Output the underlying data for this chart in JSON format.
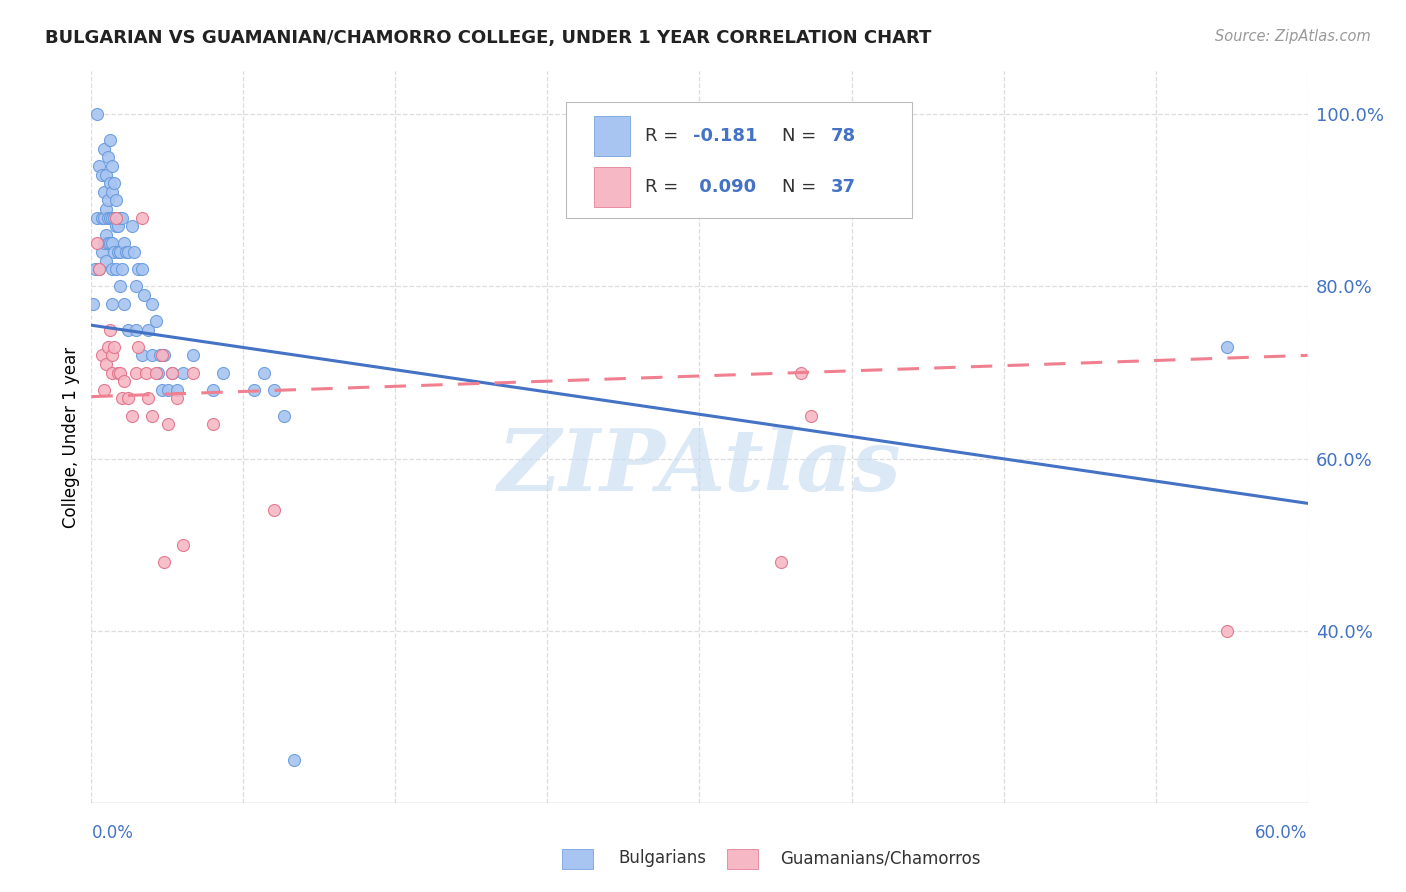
{
  "title": "BULGARIAN VS GUAMANIAN/CHAMORRO COLLEGE, UNDER 1 YEAR CORRELATION CHART",
  "source": "Source: ZipAtlas.com",
  "ylabel": "College, Under 1 year",
  "right_yticks": [
    "100.0%",
    "80.0%",
    "60.0%",
    "40.0%"
  ],
  "right_ytick_vals": [
    1.0,
    0.8,
    0.6,
    0.4
  ],
  "legend_R1": "-0.181",
  "legend_N1": "78",
  "legend_R2": "0.090",
  "legend_N2": "37",
  "blue_color": "#A8C4F0",
  "blue_edge_color": "#6699DD",
  "pink_color": "#F5B8C4",
  "pink_edge_color": "#E07088",
  "blue_line_color": "#4472C4",
  "pink_line_color": "#F08090",
  "text_blue": "#4472C4",
  "text_dark": "#333333",
  "watermark_color": "#C8DCF0",
  "background_color": "#FFFFFF",
  "grid_color": "#DDDDDD",
  "border_color": "#CCCCCC",
  "xlim": [
    0.0,
    0.6
  ],
  "ylim": [
    0.2,
    1.05
  ],
  "blue_trend_x0": 0.0,
  "blue_trend_y0": 0.755,
  "blue_trend_x1": 0.6,
  "blue_trend_y1": 0.548,
  "pink_trend_x0": 0.0,
  "pink_trend_y0": 0.672,
  "pink_trend_x1": 0.6,
  "pink_trend_y1": 0.72,
  "blue_x": [
    0.001,
    0.002,
    0.003,
    0.003,
    0.004,
    0.004,
    0.005,
    0.005,
    0.005,
    0.006,
    0.006,
    0.006,
    0.006,
    0.007,
    0.007,
    0.007,
    0.007,
    0.008,
    0.008,
    0.008,
    0.008,
    0.009,
    0.009,
    0.009,
    0.009,
    0.01,
    0.01,
    0.01,
    0.01,
    0.01,
    0.01,
    0.011,
    0.011,
    0.011,
    0.012,
    0.012,
    0.012,
    0.013,
    0.013,
    0.014,
    0.014,
    0.014,
    0.015,
    0.015,
    0.016,
    0.016,
    0.017,
    0.018,
    0.018,
    0.02,
    0.021,
    0.022,
    0.022,
    0.023,
    0.025,
    0.025,
    0.026,
    0.028,
    0.03,
    0.03,
    0.032,
    0.033,
    0.034,
    0.035,
    0.036,
    0.038,
    0.04,
    0.042,
    0.045,
    0.05,
    0.06,
    0.065,
    0.08,
    0.085,
    0.09,
    0.095,
    0.1,
    0.56
  ],
  "blue_y": [
    0.78,
    0.82,
    1.0,
    0.88,
    0.94,
    0.82,
    0.93,
    0.88,
    0.84,
    0.96,
    0.91,
    0.88,
    0.85,
    0.93,
    0.89,
    0.86,
    0.83,
    0.95,
    0.9,
    0.88,
    0.85,
    0.97,
    0.92,
    0.88,
    0.85,
    0.94,
    0.91,
    0.88,
    0.85,
    0.82,
    0.78,
    0.92,
    0.88,
    0.84,
    0.9,
    0.87,
    0.82,
    0.87,
    0.84,
    0.88,
    0.84,
    0.8,
    0.88,
    0.82,
    0.85,
    0.78,
    0.84,
    0.84,
    0.75,
    0.87,
    0.84,
    0.8,
    0.75,
    0.82,
    0.82,
    0.72,
    0.79,
    0.75,
    0.78,
    0.72,
    0.76,
    0.7,
    0.72,
    0.68,
    0.72,
    0.68,
    0.7,
    0.68,
    0.7,
    0.72,
    0.68,
    0.7,
    0.68,
    0.7,
    0.68,
    0.65,
    0.25,
    0.73
  ],
  "pink_x": [
    0.003,
    0.004,
    0.005,
    0.006,
    0.007,
    0.008,
    0.009,
    0.01,
    0.01,
    0.011,
    0.012,
    0.013,
    0.014,
    0.015,
    0.016,
    0.018,
    0.02,
    0.022,
    0.023,
    0.025,
    0.027,
    0.028,
    0.03,
    0.032,
    0.035,
    0.036,
    0.038,
    0.04,
    0.042,
    0.045,
    0.05,
    0.06,
    0.09,
    0.34,
    0.35,
    0.355,
    0.56
  ],
  "pink_y": [
    0.85,
    0.82,
    0.72,
    0.68,
    0.71,
    0.73,
    0.75,
    0.72,
    0.7,
    0.73,
    0.88,
    0.7,
    0.7,
    0.67,
    0.69,
    0.67,
    0.65,
    0.7,
    0.73,
    0.88,
    0.7,
    0.67,
    0.65,
    0.7,
    0.72,
    0.48,
    0.64,
    0.7,
    0.67,
    0.5,
    0.7,
    0.64,
    0.54,
    0.48,
    0.7,
    0.65,
    0.4
  ]
}
